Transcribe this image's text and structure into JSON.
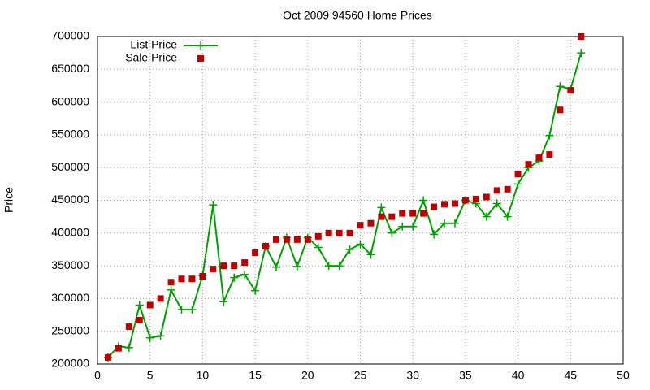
{
  "chart_data": {
    "type": "line",
    "title": "Oct 2009 94560 Home Prices",
    "y_label": "Price",
    "x": [
      1,
      2,
      3,
      4,
      5,
      6,
      7,
      8,
      9,
      10,
      11,
      12,
      13,
      14,
      15,
      16,
      17,
      18,
      19,
      20,
      21,
      22,
      23,
      24,
      25,
      26,
      27,
      28,
      29,
      30,
      31,
      32,
      33,
      34,
      35,
      36,
      37,
      38,
      39,
      40,
      41,
      42,
      43,
      44,
      45,
      46
    ],
    "series": [
      {
        "name": "List Price",
        "color": "#00a000",
        "style": "linespoints",
        "values": [
          210000,
          227000,
          225000,
          290000,
          240000,
          243000,
          313000,
          283000,
          283000,
          335000,
          443000,
          295000,
          332000,
          337000,
          312000,
          380000,
          348000,
          393000,
          349000,
          393000,
          378000,
          350000,
          350000,
          375000,
          383000,
          367000,
          439000,
          400000,
          410000,
          410000,
          450000,
          398000,
          415000,
          415000,
          450000,
          445000,
          425000,
          445000,
          425000,
          475000,
          500000,
          510000,
          549000,
          624000,
          620000,
          675000
        ]
      },
      {
        "name": "Sale Price",
        "color": "#c00000",
        "style": "points",
        "values": [
          210000,
          224000,
          257000,
          267000,
          290000,
          300000,
          325000,
          330000,
          330000,
          334000,
          345000,
          350000,
          350000,
          355000,
          370000,
          380000,
          390000,
          390000,
          390000,
          390000,
          395000,
          400000,
          400000,
          400000,
          412000,
          415000,
          425000,
          425000,
          430000,
          430000,
          430000,
          440000,
          444000,
          445000,
          450000,
          452000,
          455000,
          465000,
          467000,
          490000,
          505000,
          515000,
          520000,
          588000,
          618000,
          700000
        ]
      }
    ],
    "xlim": [
      0,
      50
    ],
    "xticks": [
      0,
      5,
      10,
      15,
      20,
      25,
      30,
      35,
      40,
      45,
      50
    ],
    "ylim": [
      200000,
      700000
    ],
    "yticks": [
      200000,
      250000,
      300000,
      350000,
      400000,
      450000,
      500000,
      550000,
      600000,
      650000,
      700000
    ],
    "grid": true,
    "legend": "top-left"
  }
}
